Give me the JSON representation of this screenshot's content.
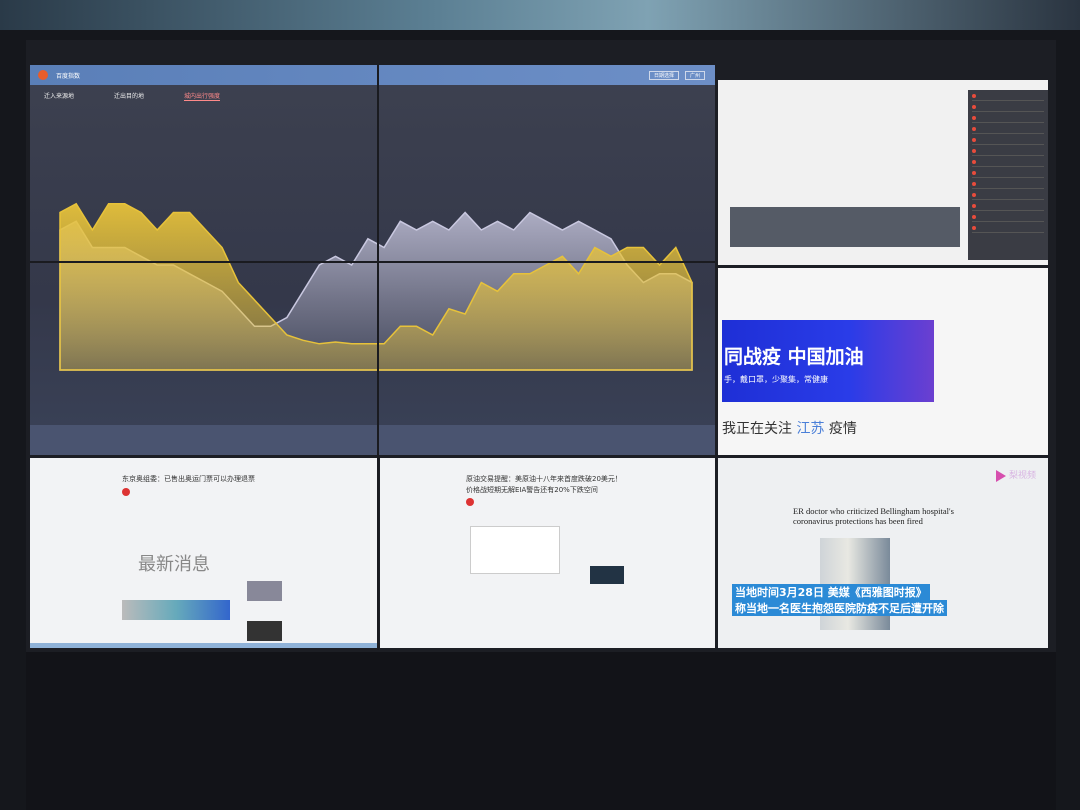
{
  "main_panel": {
    "app_title": "百度指数",
    "header_buttons": [
      "日期选择",
      "广州"
    ],
    "tabs": [
      {
        "label": "迁入来源地"
      },
      {
        "label": "迁出目的地"
      },
      {
        "label": "城内出行强度",
        "active": true
      }
    ],
    "chart": {
      "type": "area",
      "series": [
        {
          "color": "#e7c23a",
          "values": [
            9,
            9.5,
            8,
            9.5,
            9.5,
            9,
            8,
            9,
            9,
            8,
            7,
            5,
            4,
            3,
            2,
            1.7,
            1.5,
            1.6,
            1.5,
            1.5,
            1.5,
            2.5,
            2.5,
            2,
            3.5,
            3.2,
            5,
            4.5,
            5.5,
            5.5,
            6,
            6.5,
            5.5,
            7,
            6.5,
            7,
            7,
            6,
            7,
            5
          ]
        },
        {
          "color": "#c9c8e0",
          "values": [
            8,
            8.5,
            7,
            7,
            7,
            6.5,
            6,
            6,
            5.5,
            5,
            4.5,
            3.5,
            2.5,
            2.5,
            3,
            4.5,
            6,
            6.5,
            6,
            7.5,
            7,
            8.5,
            8,
            8.5,
            8,
            9,
            8,
            8.5,
            8,
            9,
            8.5,
            8,
            8.5,
            8,
            7.5,
            6,
            5,
            5.5,
            5.5,
            5
          ]
        }
      ]
    }
  },
  "right_middle": {
    "banner_line1": "同战疫 中国加油",
    "banner_line2": "手，戴口罩，少聚集，常健康",
    "follow_prefix": "我正在关注",
    "follow_region": "江苏",
    "follow_suffix": "疫情"
  },
  "bottom_left": {
    "article_title": "东京奥组委：已售出奥运门票可以办理退票",
    "big_text": "最新消息"
  },
  "bottom_middle": {
    "article_title_line1": "原油交易提醒：美原油十八年来首度跌破20美元！",
    "article_title_line2": "价格战短期无解EIA警告还有20%下跌空间"
  },
  "bottom_right": {
    "headline": "ER doctor who criticized Bellingham hospital's coronavirus protections has been fired",
    "caption_line1": "当地时间3月28日 美媒《西雅图时报》",
    "caption_line2": "称当地一名医生抱怨医院防疫不足后遭开除",
    "watermark": "梨视频"
  }
}
